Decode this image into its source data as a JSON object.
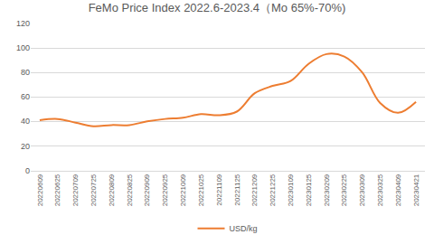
{
  "chart_data": {
    "type": "line",
    "title": "FeMo Price Index 2022.6-2023.4（Mo 65%-70%)",
    "categories": [
      "20220609",
      "20220625",
      "20220709",
      "20220725",
      "20220809",
      "20220825",
      "20220909",
      "20220925",
      "20221009",
      "20221025",
      "20221109",
      "20221125",
      "20221209",
      "20221225",
      "20230109",
      "20230125",
      "20230209",
      "20230225",
      "20230309",
      "20230325",
      "20230409",
      "20230421"
    ],
    "series": [
      {
        "name": "USD/kg",
        "color": "#ed7d31",
        "values": [
          41,
          42,
          39,
          36,
          37,
          37,
          40,
          42,
          43,
          46,
          45,
          48,
          63,
          69,
          73,
          87,
          95,
          93,
          80,
          55,
          47,
          56
        ]
      }
    ],
    "ylim": [
      0,
      120
    ],
    "yticks": [
      0,
      20,
      40,
      60,
      80,
      100,
      120
    ],
    "grid": true,
    "legend": "bottom",
    "line_style": "smooth"
  }
}
